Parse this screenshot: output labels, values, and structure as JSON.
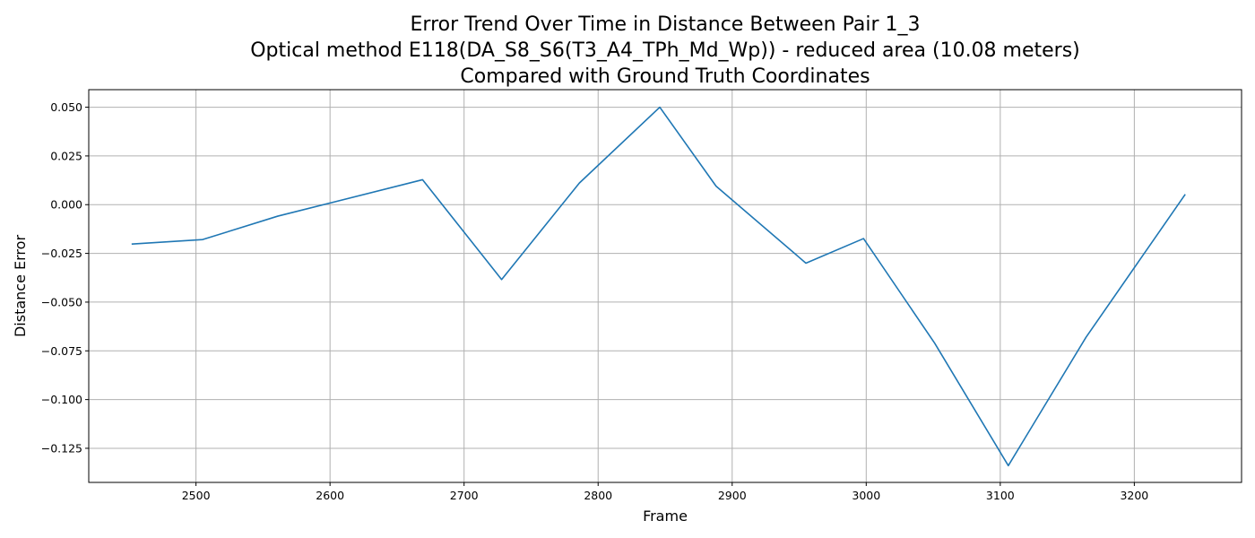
{
  "chart_data": {
    "type": "line",
    "title": [
      "Error Trend Over Time in Distance Between Pair 1_3",
      "Optical method E118(DA_S8_S6(T3_A4_TPh_Md_Wp)) - reduced area (10.08 meters)",
      "Compared with Ground Truth Coordinates"
    ],
    "xlabel": "Frame",
    "ylabel": "Distance Error",
    "xlim": [
      2420,
      3280
    ],
    "ylim": [
      -0.1425,
      0.059
    ],
    "grid": true,
    "line_color": "#1f77b4",
    "x_ticks": [
      2500,
      2600,
      2700,
      2800,
      2900,
      3000,
      3100,
      3200
    ],
    "y_ticks": [
      0.05,
      0.025,
      0.0,
      -0.025,
      -0.05,
      -0.075,
      -0.1,
      -0.125
    ],
    "y_tick_labels": [
      "0.050",
      "0.025",
      "0.000",
      "−0.025",
      "−0.050",
      "−0.075",
      "−0.100",
      "−0.125"
    ],
    "series": [
      {
        "x": [
          2452,
          2505,
          2561,
          2669,
          2728,
          2786,
          2846,
          2888,
          2955,
          2998,
          3051,
          3106,
          3164,
          3238
        ],
        "y": [
          -0.0202,
          -0.0179,
          -0.0059,
          0.0128,
          -0.0384,
          0.0111,
          0.05,
          0.0095,
          -0.03,
          -0.0174,
          -0.071,
          -0.1339,
          -0.068,
          0.0053
        ]
      }
    ]
  }
}
